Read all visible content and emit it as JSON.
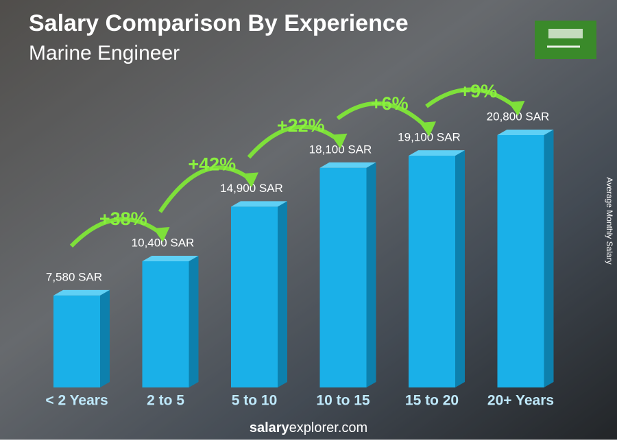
{
  "chart_data": {
    "type": "bar",
    "title": "Salary Comparison By Experience",
    "subtitle": "Marine Engineer",
    "y_axis_label": "Average Monthly Salary",
    "categories": [
      "< 2 Years",
      "2 to 5",
      "5 to 10",
      "10 to 15",
      "15 to 20",
      "20+ Years"
    ],
    "values": [
      7580,
      10400,
      14900,
      18100,
      19100,
      20800
    ],
    "value_labels": [
      "7,580 SAR",
      "10,400 SAR",
      "14,900 SAR",
      "18,100 SAR",
      "19,100 SAR",
      "20,800 SAR"
    ],
    "increase_labels": [
      "+38%",
      "+42%",
      "+22%",
      "+6%",
      "+9%"
    ],
    "color": "#1ab0e8",
    "brand": {
      "bold": "salary",
      "rest": "explorer.com"
    }
  }
}
